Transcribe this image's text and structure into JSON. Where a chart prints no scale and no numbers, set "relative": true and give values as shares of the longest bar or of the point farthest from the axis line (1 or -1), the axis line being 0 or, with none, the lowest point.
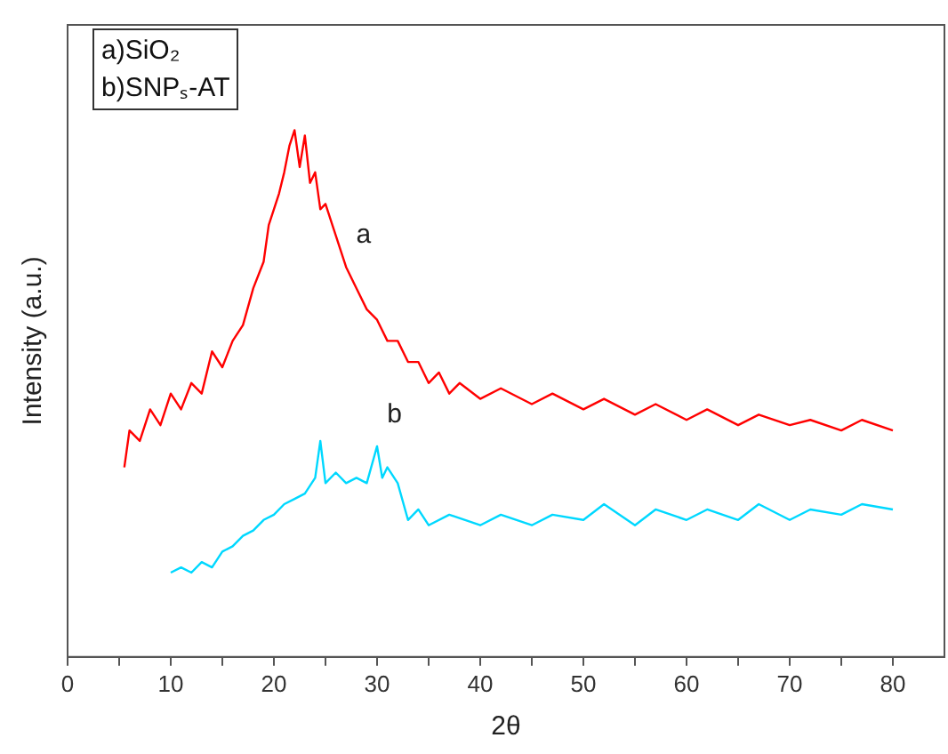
{
  "chart_data": {
    "type": "line",
    "relative": true,
    "xlabel": "2θ",
    "ylabel": "Intensity (a.u.)",
    "annotations": [
      "a)SiO₂",
      "b)SNPₛ-AT"
    ],
    "xlim": [
      0,
      85
    ],
    "xticks": [
      0,
      {
        "value": 5,
        "label": null
      },
      10,
      {
        "value": 15,
        "label": null
      },
      20,
      {
        "value": 25,
        "label": null
      },
      30,
      {
        "value": 35,
        "label": null
      },
      40,
      {
        "value": 45,
        "label": null
      },
      50,
      {
        "value": 55,
        "label": null
      },
      60,
      {
        "value": 65,
        "label": null
      },
      70,
      {
        "value": 75,
        "label": null
      },
      80
    ],
    "grid": false,
    "legend": false,
    "marker": "none",
    "line_style": "solid",
    "series": [
      {
        "name": "a",
        "color": "#ff0000",
        "x": [
          5.5,
          6,
          7,
          8,
          9,
          10,
          11,
          12,
          13,
          14,
          15,
          16,
          17,
          18,
          19,
          19.5,
          20,
          20.5,
          21,
          21.5,
          22,
          22.5,
          23,
          23.5,
          24,
          24.5,
          25,
          26,
          27,
          28,
          29,
          30,
          31,
          32,
          33,
          34,
          35,
          36,
          37,
          38,
          40,
          42,
          45,
          47,
          50,
          52,
          55,
          57,
          60,
          62,
          65,
          67,
          70,
          72,
          75,
          77,
          80
        ],
        "values": [
          0.36,
          0.43,
          0.41,
          0.47,
          0.44,
          0.5,
          0.47,
          0.52,
          0.5,
          0.58,
          0.55,
          0.6,
          0.63,
          0.7,
          0.75,
          0.82,
          0.85,
          0.88,
          0.92,
          0.97,
          1,
          0.93,
          0.99,
          0.9,
          0.92,
          0.85,
          0.86,
          0.8,
          0.74,
          0.7,
          0.66,
          0.64,
          0.6,
          0.6,
          0.56,
          0.56,
          0.52,
          0.54,
          0.5,
          0.52,
          0.49,
          0.51,
          0.48,
          0.5,
          0.47,
          0.49,
          0.46,
          0.48,
          0.45,
          0.47,
          0.44,
          0.46,
          0.44,
          0.45,
          0.43,
          0.45,
          0.43
        ]
      },
      {
        "name": "b",
        "color": "#00d8ff",
        "x": [
          10,
          11,
          12,
          13,
          14,
          15,
          16,
          17,
          18,
          19,
          20,
          21,
          22,
          23,
          24,
          24.5,
          25,
          26,
          27,
          28,
          29,
          30,
          30.5,
          31,
          32,
          33,
          34,
          35,
          37,
          40,
          42,
          45,
          47,
          50,
          52,
          55,
          57,
          60,
          62,
          65,
          67,
          70,
          72,
          75,
          77,
          80
        ],
        "values": [
          0.16,
          0.17,
          0.16,
          0.18,
          0.17,
          0.2,
          0.21,
          0.23,
          0.24,
          0.26,
          0.27,
          0.29,
          0.3,
          0.31,
          0.34,
          0.41,
          0.33,
          0.35,
          0.33,
          0.34,
          0.33,
          0.4,
          0.34,
          0.36,
          0.33,
          0.26,
          0.28,
          0.25,
          0.27,
          0.25,
          0.27,
          0.25,
          0.27,
          0.26,
          0.29,
          0.25,
          0.28,
          0.26,
          0.28,
          0.26,
          0.29,
          0.26,
          0.28,
          0.27,
          0.29,
          0.28
        ]
      }
    ]
  }
}
